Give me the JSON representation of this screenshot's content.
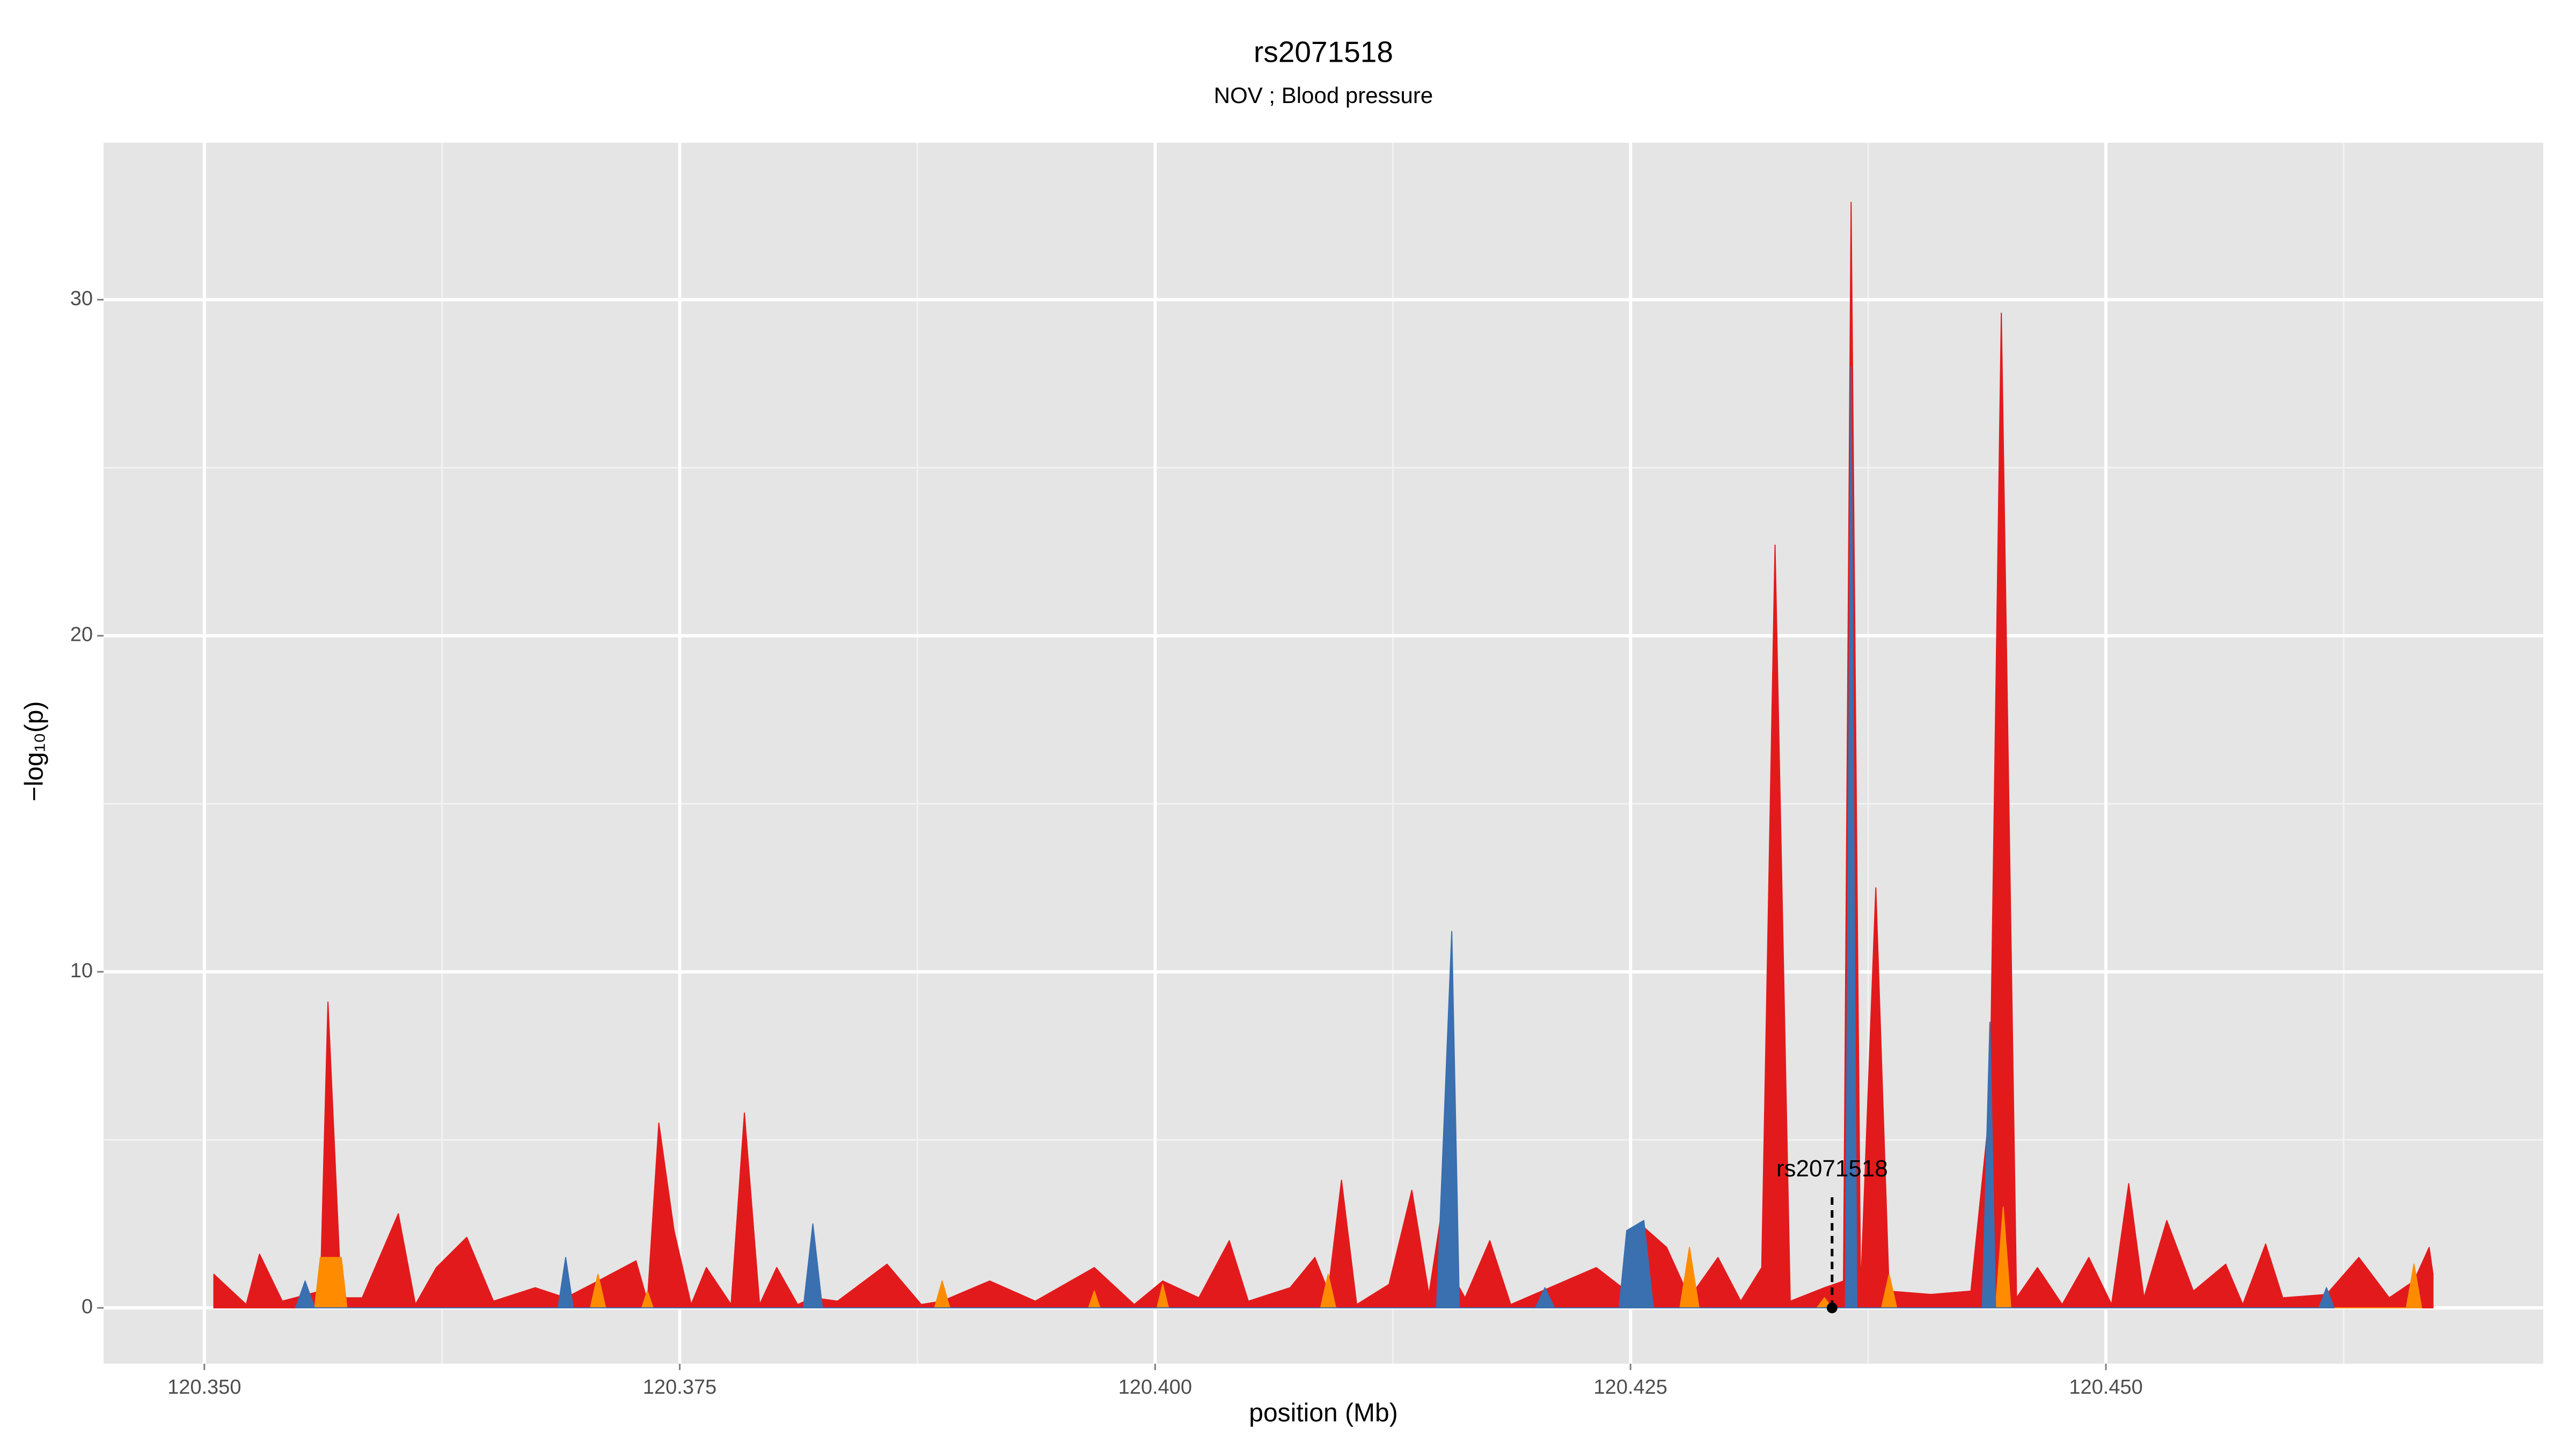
{
  "chart_data": {
    "type": "area",
    "title": "rs2071518",
    "subtitle": "NOV ; Blood pressure",
    "x_label": "position (Mb)",
    "y_label": "−log₁₀(p)",
    "xlim": [
      120.3447,
      120.473
    ],
    "ylim": [
      -1.66,
      34.67
    ],
    "xticks": [
      {
        "value": 120.35,
        "label": "120.350"
      },
      120.375,
      {
        "value": 120.4,
        "label": "120.400"
      },
      120.425,
      {
        "value": 120.45,
        "label": "120.450"
      }
    ],
    "xminor": [
      120.3625,
      120.3875,
      120.4125,
      120.4375,
      120.4625
    ],
    "yticks": [
      0,
      10,
      20,
      30
    ],
    "yminor": [
      5,
      15,
      25
    ],
    "grid": true,
    "series": [
      {
        "color": "#e31a1c",
        "x": [
          120.3505,
          120.3522,
          120.3529,
          120.3541,
          120.3561,
          120.3565,
          120.3572,
          120.3583,
          120.3602,
          120.3611,
          120.3622,
          120.3638,
          120.3652,
          120.3674,
          120.369,
          120.3707,
          120.3727,
          120.3733,
          120.3739,
          120.3747,
          120.3756,
          120.3764,
          120.3777,
          120.3784,
          120.3792,
          120.3801,
          120.3812,
          120.382,
          120.3833,
          120.3859,
          120.3877,
          120.3888,
          120.3913,
          120.3937,
          120.3968,
          120.3989,
          120.4004,
          120.4023,
          120.4039,
          120.4049,
          120.4071,
          120.4084,
          120.4091,
          120.4098,
          120.4106,
          120.4123,
          120.4135,
          120.4144,
          120.4151,
          120.4156,
          120.4163,
          120.4176,
          120.4187,
          120.4232,
          120.4248,
          120.4257,
          120.4269,
          120.4281,
          120.4296,
          120.4308,
          120.4319,
          120.4326,
          120.4334,
          120.4352,
          120.4362,
          120.4366,
          120.4371,
          120.4379,
          120.4386,
          120.4408,
          120.4429,
          120.4439,
          120.4445,
          120.4453,
          120.4464,
          120.4477,
          120.4491,
          120.4503,
          120.4512,
          120.452,
          120.4532,
          120.4546,
          120.4563,
          120.4572,
          120.4584,
          120.4593,
          120.4616,
          120.4633,
          120.4649,
          120.4662,
          120.467,
          120.4672
        ],
        "values": [
          1.0,
          0.1,
          1.6,
          0.2,
          0.5,
          9.1,
          0.3,
          0.3,
          2.8,
          0.1,
          1.2,
          2.1,
          0.2,
          0.6,
          0.3,
          0.8,
          1.4,
          0.2,
          5.5,
          2.3,
          0.1,
          1.2,
          0.1,
          5.8,
          0.1,
          1.2,
          0.1,
          0.3,
          0.2,
          1.3,
          0.1,
          0.2,
          0.8,
          0.2,
          1.2,
          0.1,
          0.8,
          0.3,
          2.0,
          0.2,
          0.6,
          1.5,
          0.5,
          3.8,
          0.1,
          0.7,
          3.5,
          0.4,
          3.0,
          1.0,
          0.3,
          2.0,
          0.1,
          1.2,
          0.5,
          2.4,
          1.8,
          0.3,
          1.5,
          0.2,
          1.2,
          22.7,
          0.2,
          0.6,
          0.8,
          32.9,
          0.5,
          12.5,
          0.5,
          0.4,
          0.5,
          6.0,
          29.6,
          0.3,
          1.2,
          0.1,
          1.5,
          0.1,
          3.7,
          0.3,
          2.6,
          0.5,
          1.3,
          0.1,
          1.9,
          0.3,
          0.4,
          1.5,
          0.3,
          0.8,
          1.8,
          1.0
        ]
      },
      {
        "color": "#ff8c00",
        "x": [
          120.3558,
          120.3561,
          120.3572,
          120.3575,
          120.3703,
          120.3707,
          120.3711,
          120.373,
          120.3733,
          120.3736,
          120.3884,
          120.3888,
          120.3892,
          120.3965,
          120.3968,
          120.3971,
          120.4001,
          120.4004,
          120.4007,
          120.4087,
          120.4091,
          120.4095,
          120.4276,
          120.4281,
          120.4286,
          120.4348,
          120.4352,
          120.4356,
          120.4382,
          120.4386,
          120.439,
          120.4442,
          120.4446,
          120.445,
          120.4658,
          120.4662,
          120.4666
        ],
        "values": [
          0,
          1.5,
          1.5,
          0,
          0,
          1.0,
          0,
          0,
          0.5,
          0,
          0,
          0.8,
          0,
          0,
          0.5,
          0,
          0,
          0.7,
          0,
          0,
          1.0,
          0,
          0,
          1.8,
          0,
          0,
          0.3,
          0,
          0,
          1.0,
          0,
          0,
          3,
          0,
          0,
          1.3,
          0
        ]
      },
      {
        "color": "#3a6fb0",
        "x": [
          120.3548,
          120.3553,
          120.3558,
          120.3686,
          120.369,
          120.3694,
          120.3815,
          120.382,
          120.3825,
          120.4148,
          120.4156,
          120.416,
          120.42,
          120.4205,
          120.421,
          120.4244,
          120.4248,
          120.4257,
          120.4262,
          120.4363,
          120.4366,
          120.4369,
          120.4435,
          120.4439,
          120.4442,
          120.4612,
          120.4616,
          120.462
        ],
        "values": [
          0,
          0.8,
          0,
          0,
          1.5,
          0,
          0,
          2.5,
          0,
          0,
          11.2,
          0,
          0,
          0.6,
          0,
          0,
          2.3,
          2.6,
          0,
          0,
          28,
          0,
          0,
          8.5,
          0,
          0,
          0.6,
          0
        ]
      }
    ],
    "annotation": {
      "label": "rs2071518",
      "x": 120.4356,
      "y_top": 3.3,
      "y_point": 0
    }
  }
}
